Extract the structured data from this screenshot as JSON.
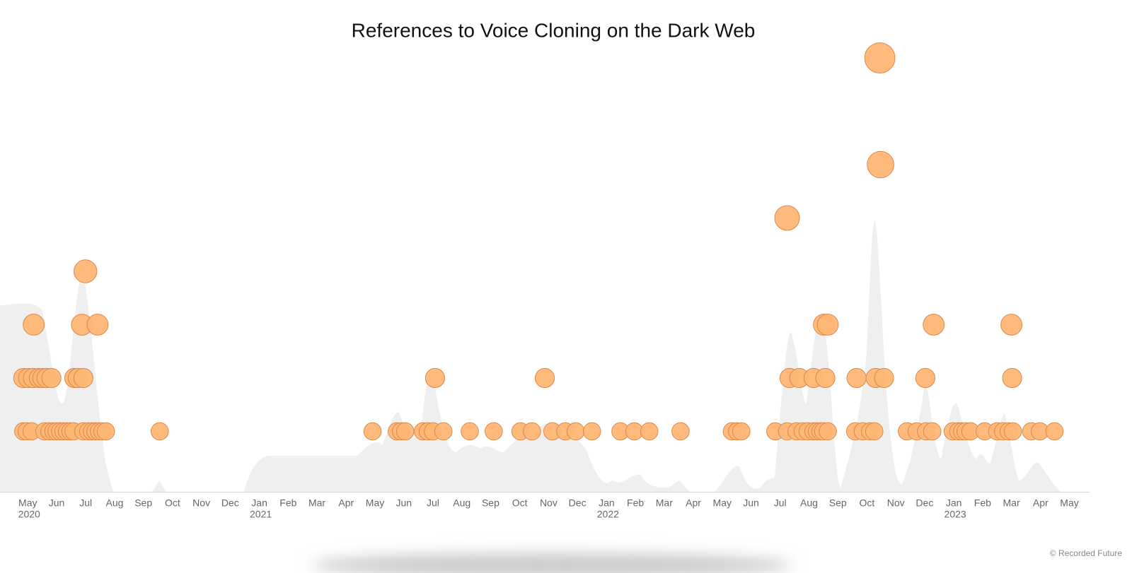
{
  "chart_data": {
    "type": "scatter",
    "title": "References to Voice Cloning on the Dark Web",
    "credit": "© Recorded Future",
    "xlim": [
      2020.295,
      2023.433
    ],
    "ylim": [
      0,
      8.5
    ],
    "xticks": [
      {
        "value": 2020.375,
        "label": "May"
      },
      {
        "value": 2020.458,
        "label": "Jun"
      },
      {
        "value": 2020.542,
        "label": "Jul"
      },
      {
        "value": 2020.625,
        "label": "Aug"
      },
      {
        "value": 2020.708,
        "label": "Sep"
      },
      {
        "value": 2020.792,
        "label": "Oct"
      },
      {
        "value": 2020.875,
        "label": "Nov"
      },
      {
        "value": 2020.958,
        "label": "Dec"
      },
      {
        "value": 2021.042,
        "label": "Jan"
      },
      {
        "value": 2021.125,
        "label": "Feb"
      },
      {
        "value": 2021.208,
        "label": "Mar"
      },
      {
        "value": 2021.292,
        "label": "Apr"
      },
      {
        "value": 2021.375,
        "label": "May"
      },
      {
        "value": 2021.458,
        "label": "Jun"
      },
      {
        "value": 2021.542,
        "label": "Jul"
      },
      {
        "value": 2021.625,
        "label": "Aug"
      },
      {
        "value": 2021.708,
        "label": "Sep"
      },
      {
        "value": 2021.792,
        "label": "Oct"
      },
      {
        "value": 2021.875,
        "label": "Nov"
      },
      {
        "value": 2021.958,
        "label": "Dec"
      },
      {
        "value": 2022.042,
        "label": "Jan"
      },
      {
        "value": 2022.125,
        "label": "Feb"
      },
      {
        "value": 2022.208,
        "label": "Mar"
      },
      {
        "value": 2022.292,
        "label": "Apr"
      },
      {
        "value": 2022.375,
        "label": "May"
      },
      {
        "value": 2022.458,
        "label": "Jun"
      },
      {
        "value": 2022.542,
        "label": "Jul"
      },
      {
        "value": 2022.625,
        "label": "Aug"
      },
      {
        "value": 2022.708,
        "label": "Sep"
      },
      {
        "value": 2022.792,
        "label": "Oct"
      },
      {
        "value": 2022.875,
        "label": "Nov"
      },
      {
        "value": 2022.958,
        "label": "Dec"
      },
      {
        "value": 2023.042,
        "label": "Jan"
      },
      {
        "value": 2023.125,
        "label": "Feb"
      },
      {
        "value": 2023.208,
        "label": "Mar"
      },
      {
        "value": 2023.292,
        "label": "Apr"
      },
      {
        "value": 2023.375,
        "label": "May"
      }
    ],
    "xyear_ticks": [
      {
        "value": 2020.375,
        "label": "2020"
      },
      {
        "value": 2021.042,
        "label": "2021"
      },
      {
        "value": 2022.042,
        "label": "2022"
      },
      {
        "value": 2023.042,
        "label": "2023"
      }
    ],
    "color": "#ffb675",
    "x": [
      2020.362,
      2020.372,
      2020.386,
      2020.423,
      2020.437,
      2020.449,
      2020.458,
      2020.468,
      2020.478,
      2020.488,
      2020.498,
      2020.507,
      2020.535,
      2020.549,
      2020.56,
      2020.57,
      2020.58,
      2020.59,
      2020.6,
      2020.755,
      2021.368,
      2021.438,
      2021.45,
      2021.462,
      2021.513,
      2021.527,
      2021.542,
      2021.572,
      2021.648,
      2021.717,
      2021.794,
      2021.827,
      2021.886,
      2021.923,
      2021.953,
      2022.0,
      2022.082,
      2022.122,
      2022.165,
      2022.255,
      2022.403,
      2022.418,
      2022.43,
      2022.528,
      2022.562,
      2022.589,
      2022.607,
      2022.621,
      2022.638,
      2022.648,
      2022.658,
      2022.666,
      2022.679,
      2022.758,
      2022.78,
      2022.801,
      2022.813,
      2022.907,
      2022.935,
      2022.962,
      2022.98,
      2023.039,
      2023.055,
      2023.066,
      2023.076,
      2023.09,
      2023.131,
      2023.167,
      2023.184,
      2023.2,
      2023.212,
      2023.265,
      2023.29,
      2023.332,
      2020.362,
      2020.376,
      2020.39,
      2020.407,
      2020.417,
      2020.429,
      2020.443,
      2020.509,
      2020.519,
      2020.535,
      2021.548,
      2021.864,
      2022.569,
      2022.597,
      2022.638,
      2022.672,
      2022.762,
      2022.817,
      2022.841,
      2022.96,
      2023.21,
      2020.392,
      2020.531,
      2020.576,
      2022.668,
      2022.679,
      2022.984,
      2023.208,
      2020.541,
      2022.562,
      2022.831,
      2022.829
    ],
    "y": [
      1,
      1,
      1,
      1,
      1,
      1,
      1,
      1,
      1,
      1,
      1,
      1,
      1,
      1,
      1,
      1,
      1,
      1,
      1,
      1,
      1,
      1,
      1,
      1,
      1,
      1,
      1,
      1,
      1,
      1,
      1,
      1,
      1,
      1,
      1,
      1,
      1,
      1,
      1,
      1,
      1,
      1,
      1,
      1,
      1,
      1,
      1,
      1,
      1,
      1,
      1,
      1,
      1,
      1,
      1,
      1,
      1,
      1,
      1,
      1,
      1,
      1,
      1,
      1,
      1,
      1,
      1,
      1,
      1,
      1,
      1,
      1,
      1,
      1,
      2,
      2,
      2,
      2,
      2,
      2,
      2,
      2,
      2,
      2,
      2,
      2,
      2,
      2,
      2,
      2,
      2,
      2,
      2,
      2,
      2,
      3,
      3,
      3,
      3,
      3,
      3,
      3,
      4,
      5,
      6,
      8
    ]
  }
}
